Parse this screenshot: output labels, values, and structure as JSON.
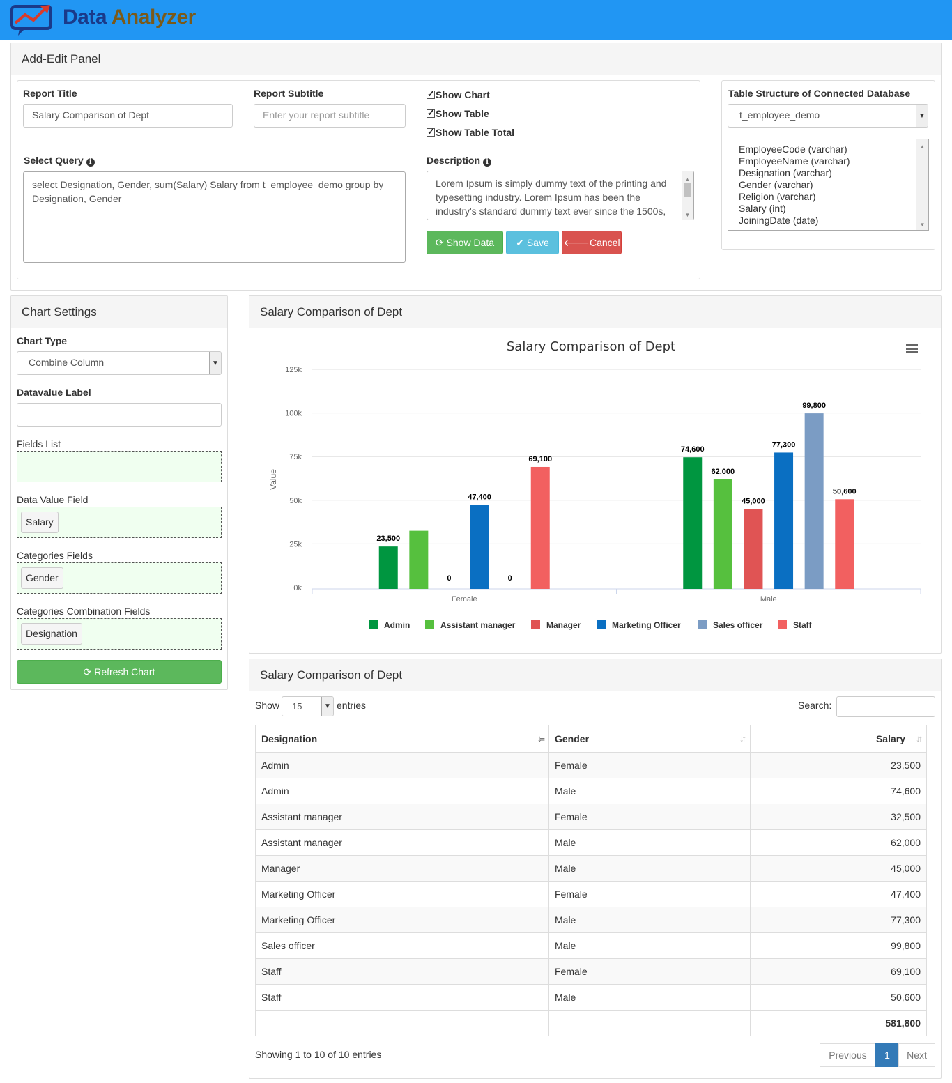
{
  "app": {
    "brand_part1": "Data",
    "brand_part2": "Analyzer"
  },
  "add_edit_panel": {
    "title": "Add-Edit Panel",
    "report_title_label": "Report Title",
    "report_title_value": "Salary Comparison of Dept",
    "report_subtitle_label": "Report Subtitle",
    "report_subtitle_placeholder": "Enter your report subtitle",
    "show_chart": "Show Chart",
    "show_table": "Show Table",
    "show_table_total": "Show Table Total",
    "select_query_label": "Select Query",
    "select_query_value": "select Designation, Gender, sum(Salary) Salary from t_employee_demo group by Designation, Gender",
    "description_label": "Description",
    "description_value": "Lorem Ipsum is simply dummy text of the printing and typesetting industry. Lorem Ipsum has been the industry's standard dummy text ever since the 1500s,",
    "show_data_button": "Show Data",
    "save_button": "Save",
    "cancel_button": "Cancel",
    "table_structure_label": "Table Structure of Connected Database",
    "table_select_value": "t_employee_demo",
    "columns": [
      "EmployeeCode (varchar)",
      "EmployeeName (varchar)",
      "Designation (varchar)",
      "Gender (varchar)",
      "Religion (varchar)",
      "Salary (int)",
      "JoiningDate (date)"
    ]
  },
  "chart_settings": {
    "title": "Chart Settings",
    "chart_type_label": "Chart Type",
    "chart_type_value": "Combine Column",
    "datavalue_label": "Datavalue Label",
    "datavalue_value": "",
    "fields_list_label": "Fields List",
    "data_value_field_label": "Data Value Field",
    "data_value_field_chip": "Salary",
    "categories_fields_label": "Categories Fields",
    "categories_fields_chip": "Gender",
    "categories_combination_label": "Categories Combination Fields",
    "categories_combination_chip": "Designation",
    "refresh_button": "Refresh Chart"
  },
  "chart_panel": {
    "title": "Salary Comparison of Dept"
  },
  "chart_data": {
    "type": "bar",
    "title": "Salary Comparison of Dept",
    "ylabel": "Value",
    "ylim": [
      0,
      125000
    ],
    "ytick_labels": [
      "0k",
      "25k",
      "50k",
      "75k",
      "100k",
      "125k"
    ],
    "categories": [
      "Female",
      "Male"
    ],
    "legend_position": "bottom",
    "series": [
      {
        "name": "Admin",
        "color": "#009640",
        "values": [
          23500,
          74600
        ],
        "labels": [
          "23,500",
          "74,600"
        ]
      },
      {
        "name": "Assistant manager",
        "color": "#56c03e",
        "values": [
          32500,
          62000
        ],
        "labels": [
          "",
          "62,000"
        ]
      },
      {
        "name": "Manager",
        "color": "#e05454",
        "values": [
          0,
          45000
        ],
        "labels": [
          "0",
          "45,000"
        ]
      },
      {
        "name": "Marketing Officer",
        "color": "#0a6fc2",
        "values": [
          47400,
          77300
        ],
        "labels": [
          "47,400",
          "77,300"
        ]
      },
      {
        "name": "Sales officer",
        "color": "#7b9cc4",
        "values": [
          0,
          99800
        ],
        "labels": [
          "0",
          "99,800"
        ]
      },
      {
        "name": "Staff",
        "color": "#f26060",
        "values": [
          69100,
          50600
        ],
        "labels": [
          "69,100",
          "50,600"
        ]
      }
    ]
  },
  "table_panel": {
    "title": "Salary Comparison of Dept",
    "show_label": "Show",
    "entries_value": "15",
    "entries_label": "entries",
    "search_label": "Search:",
    "headers": [
      "Designation",
      "Gender",
      "Salary"
    ],
    "rows": [
      [
        "Admin",
        "Female",
        "23,500"
      ],
      [
        "Admin",
        "Male",
        "74,600"
      ],
      [
        "Assistant manager",
        "Female",
        "32,500"
      ],
      [
        "Assistant manager",
        "Male",
        "62,000"
      ],
      [
        "Manager",
        "Male",
        "45,000"
      ],
      [
        "Marketing Officer",
        "Female",
        "47,400"
      ],
      [
        "Marketing Officer",
        "Male",
        "77,300"
      ],
      [
        "Sales officer",
        "Male",
        "99,800"
      ],
      [
        "Staff",
        "Female",
        "69,100"
      ],
      [
        "Staff",
        "Male",
        "50,600"
      ]
    ],
    "total": "581,800",
    "info": "Showing 1 to 10 of 10 entries",
    "previous": "Previous",
    "page": "1",
    "next": "Next"
  }
}
